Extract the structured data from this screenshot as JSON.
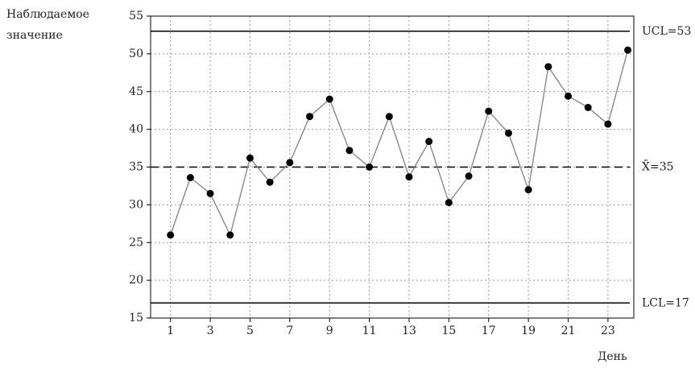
{
  "chart_data": {
    "type": "line",
    "y_label": [
      "Наблюдаемое",
      "значение"
    ],
    "x_label": "День",
    "x": [
      1,
      2,
      3,
      4,
      5,
      6,
      7,
      8,
      9,
      10,
      11,
      12,
      13,
      14,
      15,
      16,
      17,
      18,
      19,
      20,
      21,
      22,
      23,
      24
    ],
    "series": [
      {
        "color": "#888888",
        "marker_color": "#000000",
        "values": [
          26,
          33.6,
          31.5,
          26,
          36.2,
          33,
          35.6,
          41.7,
          44,
          37.2,
          35,
          41.7,
          33.7,
          38.4,
          30.3,
          33.8,
          42.4,
          39.5,
          32,
          48.3,
          44.4,
          42.9,
          40.7,
          50.5
        ]
      }
    ],
    "control_lines": [
      {
        "value": 53,
        "label": "UCL=53",
        "style": "solid"
      },
      {
        "value": 35,
        "label": "X̄=35",
        "style": "dashed"
      },
      {
        "value": 17,
        "label": "LCL=17",
        "style": "solid"
      }
    ],
    "xlim": [
      0,
      24.3
    ],
    "ylim": [
      15,
      55
    ],
    "xticks": [
      1,
      3,
      5,
      7,
      9,
      11,
      13,
      15,
      17,
      19,
      21,
      23
    ],
    "yticks": [
      15,
      20,
      25,
      30,
      35,
      40,
      45,
      50,
      55
    ],
    "grid": true
  }
}
